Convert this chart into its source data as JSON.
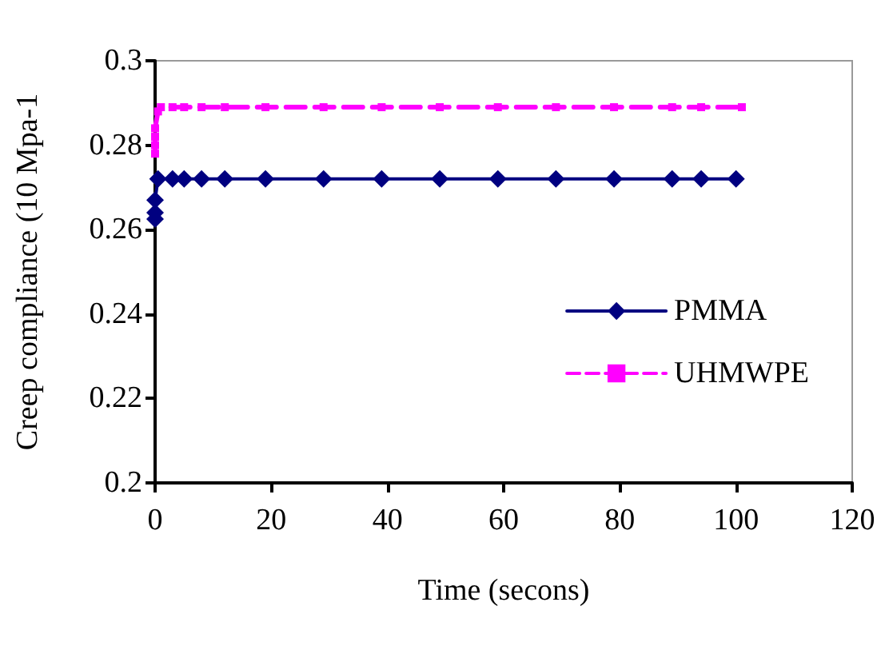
{
  "chart_data": {
    "type": "line",
    "xlabel": "Time (secons)",
    "ylabel": "Creep compliance (10 Mpa-1",
    "xlim": [
      0,
      120
    ],
    "xticks": [
      0,
      20,
      40,
      60,
      80,
      100,
      120
    ],
    "ylim": [
      0.2,
      0.3
    ],
    "yticks": [
      0.2,
      0.22,
      0.24,
      0.26,
      0.28,
      0.3
    ],
    "grid": false,
    "legend": "right",
    "series": [
      {
        "name": "PMMA",
        "color": "#000080",
        "marker": "diamond",
        "line_style": "solid",
        "x": [
          0,
          0,
          0,
          0.5,
          3,
          5,
          8,
          12,
          19,
          29,
          39,
          49,
          59,
          69,
          79,
          89,
          94,
          100
        ],
        "values": [
          0.2625,
          0.264,
          0.267,
          0.272,
          0.272,
          0.272,
          0.272,
          0.272,
          0.272,
          0.272,
          0.272,
          0.272,
          0.272,
          0.272,
          0.272,
          0.272,
          0.272,
          0.272
        ]
      },
      {
        "name": "UHMWPE",
        "color": "#ff00ff",
        "marker": "square",
        "line_style": "dashed",
        "x": [
          0,
          0,
          0,
          0,
          0.5,
          1,
          3,
          5,
          8,
          12,
          19,
          29,
          39,
          49,
          59,
          69,
          79,
          89,
          94,
          101
        ],
        "values": [
          0.278,
          0.28,
          0.282,
          0.284,
          0.288,
          0.289,
          0.289,
          0.289,
          0.289,
          0.289,
          0.289,
          0.289,
          0.289,
          0.289,
          0.289,
          0.289,
          0.289,
          0.289,
          0.289,
          0.289
        ]
      }
    ]
  }
}
